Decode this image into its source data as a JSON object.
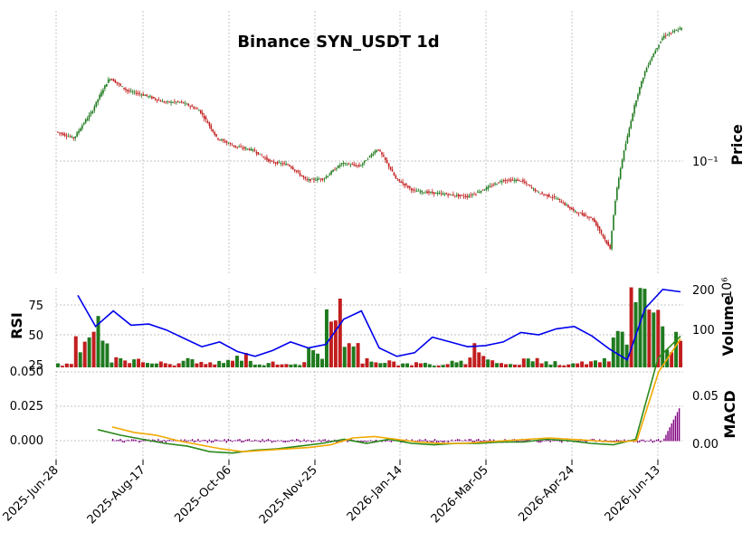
{
  "chart_data": {
    "type": "candlestick",
    "title": "Binance SYN_USDT 1d",
    "x_tick_labels": [
      "2025-Jun-28",
      "2025-Aug-17",
      "2025-Oct-06",
      "2025-Nov-25",
      "2026-Jan-14",
      "2026-Mar-05",
      "2026-Apr-24",
      "2026-Jun-13"
    ],
    "colors": {
      "up": "#1f7a1f",
      "down": "#c21e1e",
      "rsi": "#0000ee",
      "macd": "#2a8a1a",
      "signal": "#f2a900",
      "hist": "#800080",
      "grid": "#b0b0b0"
    },
    "panels": [
      {
        "name": "price",
        "ylabel": "Price",
        "scale": "log",
        "tick_labels": [
          "10⁻¹"
        ],
        "close_series": [
          0.098,
          0.092,
          0.119,
          0.166,
          0.146,
          0.14,
          0.131,
          0.131,
          0.121,
          0.092,
          0.085,
          0.082,
          0.073,
          0.071,
          0.061,
          0.062,
          0.072,
          0.07,
          0.083,
          0.062,
          0.055,
          0.054,
          0.053,
          0.052,
          0.056,
          0.061,
          0.061,
          0.054,
          0.051,
          0.045,
          0.042,
          0.031,
          0.095,
          0.18,
          0.25,
          0.27
        ]
      },
      {
        "name": "volume_rsi",
        "ylabel_left": "RSI",
        "ylabel_right": "Volume",
        "right_exponent": "10⁶",
        "rsi_ticks": [
          "75",
          "50",
          "25"
        ],
        "volume_ticks": [
          "200",
          "100"
        ],
        "rsi_series": [
          83,
          57,
          70,
          58,
          59,
          54,
          47,
          40,
          44,
          36,
          32,
          37,
          44,
          39,
          42,
          63,
          70,
          39,
          32,
          35,
          48,
          44,
          40,
          41,
          44,
          52,
          50,
          55,
          57,
          49,
          38,
          29,
          72,
          88,
          86
        ],
        "volume_series": [
          10,
          80,
          120,
          30,
          20,
          15,
          10,
          25,
          12,
          18,
          35,
          10,
          15,
          12,
          45,
          190,
          60,
          25,
          20,
          10,
          12,
          8,
          15,
          60,
          20,
          10,
          25,
          15,
          10,
          20,
          30,
          120,
          200,
          150,
          90
        ]
      },
      {
        "name": "macd",
        "ylabel": "MACD",
        "left_ticks": [
          "0.050",
          "0.025",
          "0.000"
        ],
        "right_ticks": [
          "0.05",
          "0.00"
        ],
        "macd_series": [
          0.008,
          0.004,
          0.001,
          -0.002,
          -0.004,
          -0.008,
          -0.009,
          -0.007,
          -0.006,
          -0.004,
          -0.002,
          0.001,
          -0.002,
          0.001,
          -0.002,
          -0.003,
          -0.002,
          -0.002,
          -0.001,
          -0.001,
          0.001,
          0.0,
          -0.002,
          -0.003,
          0.001,
          0.06,
          0.076
        ],
        "signal_series": [
          0.01,
          0.006,
          0.004,
          0.0,
          -0.003,
          -0.006,
          -0.008,
          -0.007,
          -0.006,
          -0.005,
          -0.003,
          0.002,
          0.003,
          0.001,
          -0.001,
          -0.002,
          -0.002,
          -0.001,
          0.0,
          0.001,
          0.002,
          0.001,
          0.0,
          -0.001,
          0.0,
          0.05,
          0.074
        ]
      }
    ]
  }
}
